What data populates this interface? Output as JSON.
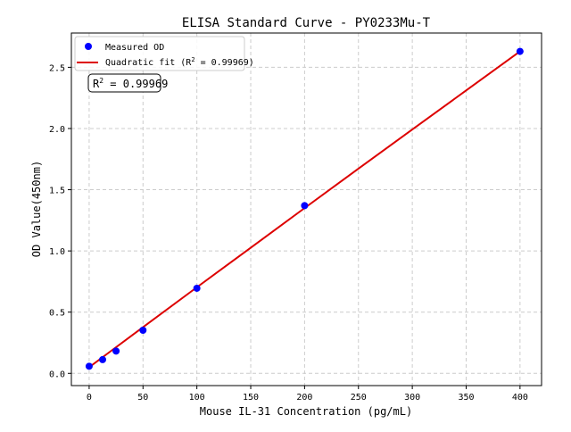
{
  "chart_data": {
    "type": "scatter",
    "title": "ELISA Standard Curve - PY0233Mu-T",
    "xlabel": "Mouse IL-31 Concentration (pg/mL)",
    "ylabel": "OD Value(450nm)",
    "xlim": [
      -16.5,
      420
    ],
    "ylim": [
      -0.1,
      2.78
    ],
    "xticks": [
      0,
      50,
      100,
      150,
      200,
      250,
      300,
      350,
      400
    ],
    "yticks": [
      0.0,
      0.5,
      1.0,
      1.5,
      2.0,
      2.5
    ],
    "grid": true,
    "legend_position": "top-left",
    "series": [
      {
        "name": "Measured OD",
        "kind": "points",
        "color": "#0000ff",
        "x": [
          0,
          12.5,
          25,
          50,
          100,
          200,
          400
        ],
        "y": [
          0.058,
          0.112,
          0.182,
          0.352,
          0.695,
          1.37,
          2.63
        ]
      },
      {
        "name": "Quadratic fit",
        "kind": "line",
        "color": "#dd0000",
        "x": [
          0,
          50,
          100,
          150,
          200,
          250,
          300,
          350,
          400
        ],
        "y": [
          0.05,
          0.377,
          0.703,
          1.026,
          1.35,
          1.672,
          1.992,
          2.311,
          2.63
        ]
      }
    ],
    "legend": {
      "points_label": "Measured OD",
      "fit_label_prefix": "Quadratic fit (R",
      "fit_label_suffix": " = 0.99969)",
      "sup": "2"
    },
    "annotation": {
      "prefix": "R",
      "sup": "2",
      "suffix": " = 0.99969"
    }
  }
}
